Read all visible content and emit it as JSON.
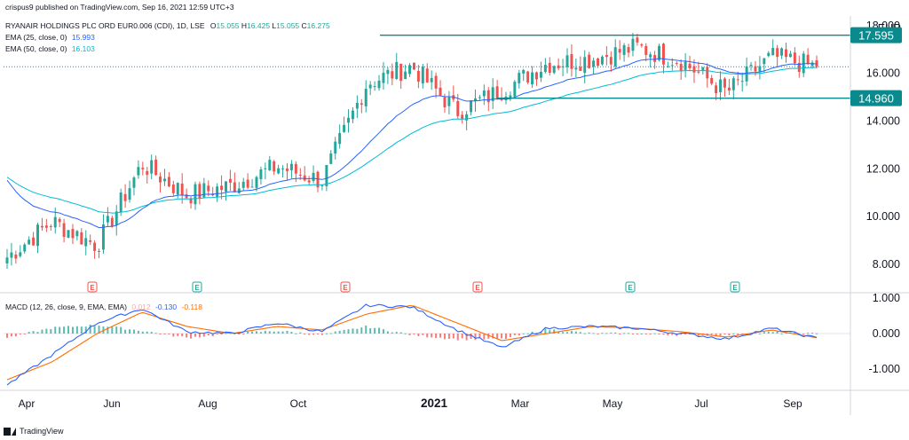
{
  "header": {
    "publisher": "crispus9 published on TradingView.com, Sep 16, 2021 12:59 UTC+3",
    "symbol_line": "RYANAIR HOLDINGS PLC ORD EUR0.006 (CDI), 1D, LSE",
    "ohlc": {
      "o_label": "O",
      "o": "15.055",
      "h_label": "H",
      "h": "16.425",
      "l_label": "L",
      "l": "15.055",
      "c_label": "C",
      "c": "16.275"
    },
    "ema25_label": "EMA (25, close, 0)",
    "ema25_value": "15.993",
    "ema50_label": "EMA (50, close, 0)",
    "ema50_value": "16.103",
    "currency": "EUR"
  },
  "macd_header": {
    "label": "MACD (12, 26, close, 9, EMA, EMA)",
    "hist": "0.012",
    "macd": "-0.130",
    "signal": "-0.118"
  },
  "footer": {
    "brand": "TradingView"
  },
  "colors": {
    "up": "#26a69a",
    "down": "#ef5350",
    "ema25": "#2962ff",
    "ema50": "#00bcd4",
    "level": "#0b8a8e",
    "macd_line": "#2962ff",
    "signal_line": "#ff6d00",
    "hist_up": "#26a69a",
    "hist_down": "#ef5350",
    "grid": "#e0e3eb",
    "dotted_price": "#1e88e5"
  },
  "chart_data": [
    {
      "type": "candlestick",
      "title": "RYANAIR HOLDINGS PLC ORD EUR0.006 (CDI), 1D, LSE",
      "ylabel": "EUR",
      "ylim": [
        7.0,
        18.4
      ],
      "y_ticks": [
        "8.000",
        "10.000",
        "12.000",
        "14.000",
        "16.000",
        "18.000"
      ],
      "x_tick_labels": [
        "Apr",
        "Jun",
        "Aug",
        "Oct",
        "2021",
        "Mar",
        "May",
        "Jul",
        "Sep"
      ],
      "grid": false,
      "horizontal_levels": [
        {
          "label": "17.595",
          "value": 17.595
        },
        {
          "label": "14.960",
          "value": 14.96
        }
      ],
      "last_price": 16.275,
      "earnings_markers": [
        {
          "label": "E",
          "kind": "down",
          "date": "2020-05"
        },
        {
          "label": "E",
          "kind": "up",
          "date": "2020-07"
        },
        {
          "label": "E",
          "kind": "down",
          "date": "2020-11"
        },
        {
          "label": "E",
          "kind": "down",
          "date": "2021-02"
        },
        {
          "label": "E",
          "kind": "up",
          "date": "2021-05"
        },
        {
          "label": "E",
          "kind": "up",
          "date": "2021-07"
        }
      ],
      "series_closes_approx": [
        {
          "date": "2020-03",
          "close": 8.3
        },
        {
          "date": "2020-04",
          "close": 9.8
        },
        {
          "date": "2020-05",
          "close": 8.8
        },
        {
          "date": "2020-06",
          "close": 12.2
        },
        {
          "date": "2020-07",
          "close": 10.9
        },
        {
          "date": "2020-08",
          "close": 11.3
        },
        {
          "date": "2020-09",
          "close": 12.1
        },
        {
          "date": "2020-10",
          "close": 11.5
        },
        {
          "date": "2020-11",
          "close": 15.6
        },
        {
          "date": "2020-12",
          "close": 16.3
        },
        {
          "date": "2021-01",
          "close": 14.4
        },
        {
          "date": "2021-02",
          "close": 15.3
        },
        {
          "date": "2021-03",
          "close": 16.4
        },
        {
          "date": "2021-04",
          "close": 16.6
        },
        {
          "date": "2021-05",
          "close": 17.1
        },
        {
          "date": "2021-06",
          "close": 16.5
        },
        {
          "date": "2021-07",
          "close": 15.2
        },
        {
          "date": "2021-08",
          "close": 16.7
        },
        {
          "date": "2021-09",
          "close": 16.275
        }
      ]
    },
    {
      "type": "line",
      "title": "MACD (12, 26, close, 9, EMA, EMA)",
      "ylim": [
        -1.6,
        1.15
      ],
      "y_ticks": [
        "1.000",
        "0.000",
        "-1.000"
      ],
      "series": [
        {
          "name": "MACD",
          "values": [
            -1.45,
            -0.6,
            0.3,
            0.7,
            0.05,
            0.0,
            0.3,
            0.05,
            0.8,
            0.75,
            0.1,
            -0.4,
            0.15,
            0.2,
            0.15,
            0.0,
            -0.15,
            0.15,
            -0.13
          ]
        },
        {
          "name": "Signal",
          "values": [
            -1.3,
            -0.8,
            0.0,
            0.6,
            0.2,
            0.0,
            0.2,
            0.1,
            0.55,
            0.8,
            0.3,
            -0.2,
            0.0,
            0.2,
            0.15,
            0.05,
            -0.1,
            0.1,
            -0.118
          ]
        }
      ]
    }
  ]
}
